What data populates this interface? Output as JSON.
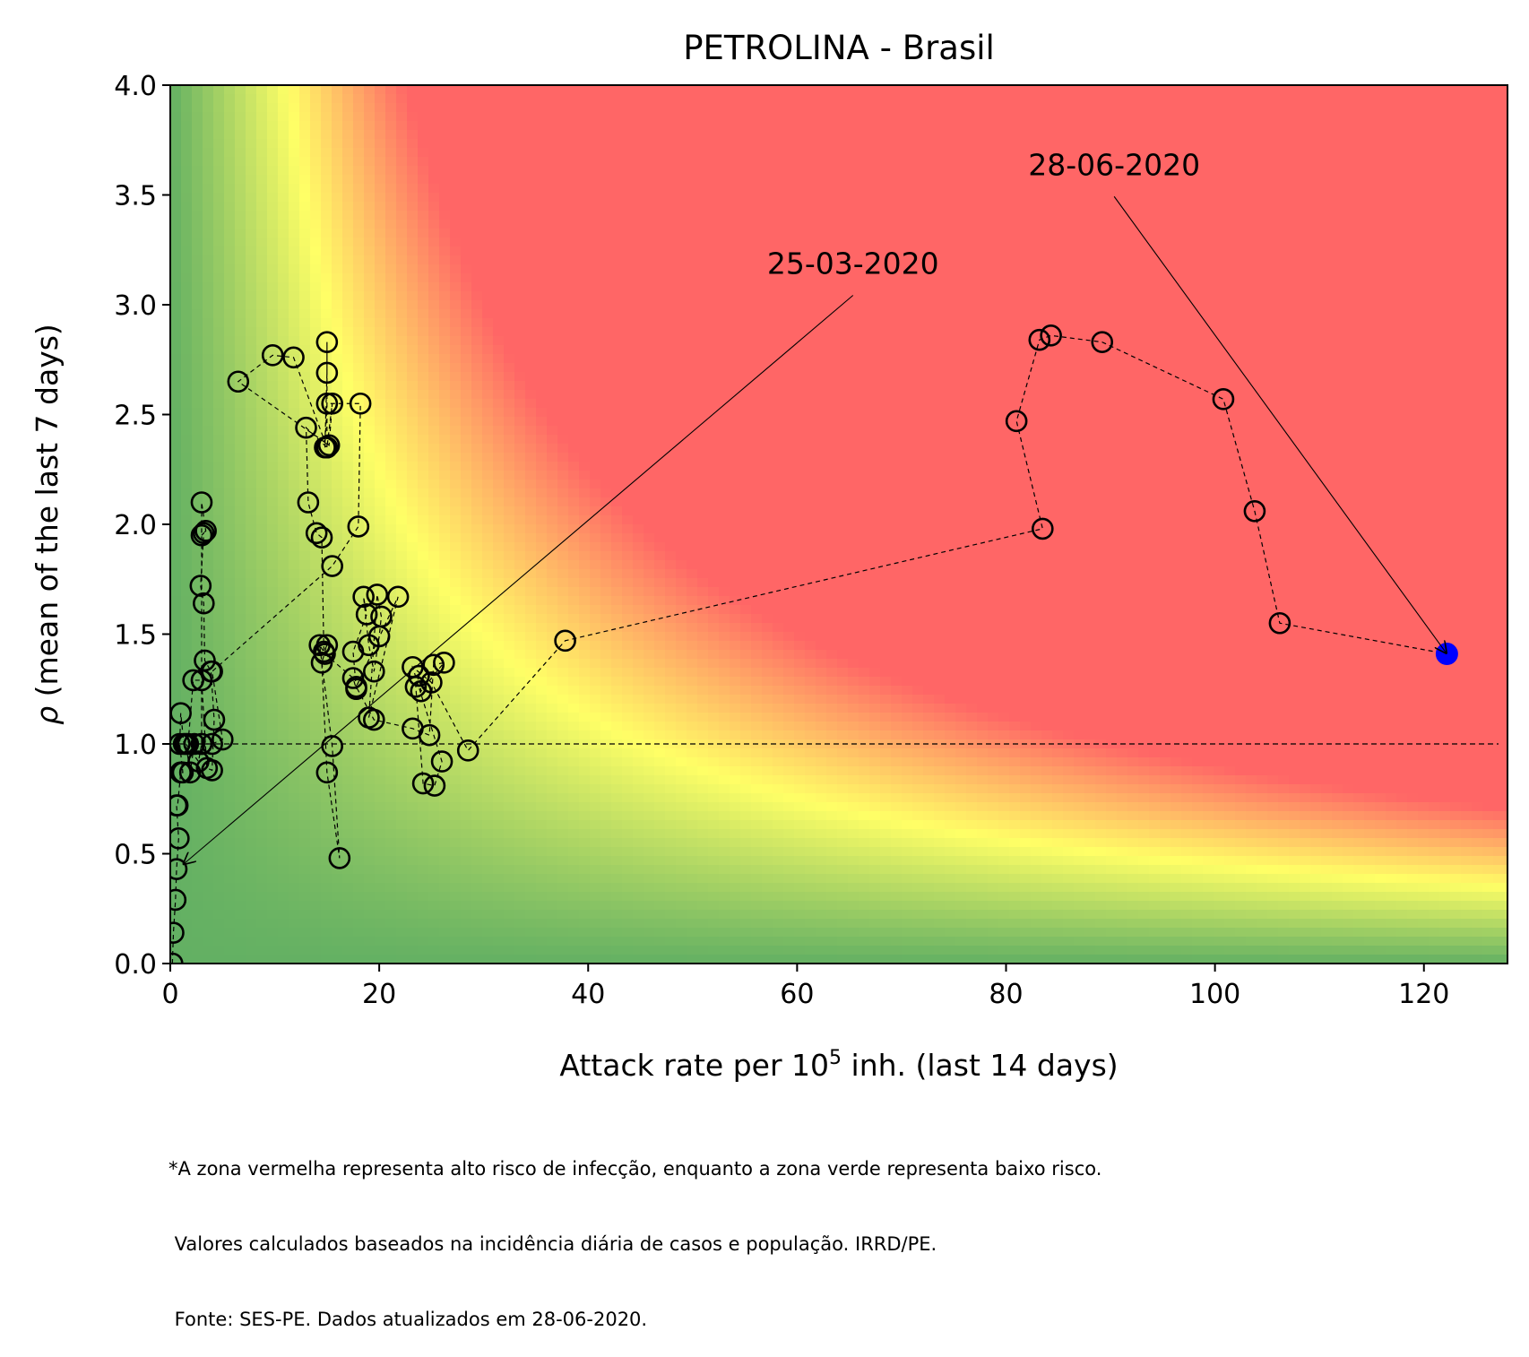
{
  "chart_data": {
    "type": "scatter",
    "title": "PETROLINA - Brasil",
    "xlabel_prefix": "Attack rate per 10",
    "xlabel_sup": "5",
    "xlabel_suffix": " inh. (last 14 days)",
    "ylabel_symbol": "ρ",
    "ylabel_text": " (mean of the last 7 days)",
    "xlim": [
      0,
      128
    ],
    "ylim": [
      0,
      4.0
    ],
    "xticks": [
      0,
      20,
      40,
      60,
      80,
      100,
      120
    ],
    "xtick_labels": [
      "0",
      "20",
      "40",
      "60",
      "80",
      "100",
      "120"
    ],
    "yticks": [
      0,
      0.5,
      1.0,
      1.5,
      2.0,
      2.5,
      3.0,
      3.5,
      4.0
    ],
    "ytick_labels": [
      "0.0",
      "0.5",
      "1.0",
      "1.5",
      "2.0",
      "2.5",
      "3.0",
      "3.5",
      "4.0"
    ],
    "reference_line_y": 1.0,
    "background": "risk heatmap: green (low) → yellow → red (high)",
    "colors": {
      "green": "#63b063",
      "yellow": "#ffff66",
      "red": "#ff6666",
      "marker": "#000000",
      "last_point": "#0000ff"
    },
    "series": [
      {
        "x": [
          0.2,
          0.3,
          0.5,
          0.6,
          0.8,
          0.6,
          0.7,
          1.0,
          1.2,
          0.9,
          1.0,
          1.3,
          1.7,
          2.2,
          3.0,
          3.5,
          4.0,
          4.2,
          3.9,
          3.3,
          3.2,
          2.9,
          3.2,
          3.0,
          3.4,
          3.0,
          3.0,
          2.7,
          1.5,
          1.9,
          2.3,
          3.0,
          4.0,
          5.0,
          4.0,
          15.5,
          18.0,
          18.2,
          15.0,
          14.8,
          15.0,
          15.0,
          15.0,
          11.8,
          9.8,
          6.5,
          15.2,
          15.5,
          15.0,
          13.0,
          13.2,
          14.0,
          14.5,
          14.7,
          15.0,
          14.5,
          15.0,
          16.2,
          15.5,
          14.3,
          14.8,
          17.5,
          17.8,
          17.5,
          18.8,
          18.5,
          19.0,
          19.5,
          20.0,
          20.2,
          19.8,
          19.0,
          21.8,
          17.8,
          19.5,
          23.2,
          24.8,
          25.2,
          26.2,
          24.0,
          23.8,
          23.5,
          24.2,
          25.3,
          26.0,
          23.2,
          25.0,
          28.5,
          37.8,
          83.5,
          81.0,
          83.2,
          84.3,
          89.2,
          100.8,
          103.8,
          106.2,
          122.2
        ],
        "y": [
          0.0,
          0.14,
          0.29,
          0.43,
          0.57,
          0.72,
          0.72,
          0.87,
          0.87,
          1.0,
          1.14,
          1.0,
          1.0,
          1.29,
          1.29,
          0.89,
          0.88,
          1.11,
          1.33,
          1.38,
          1.64,
          1.72,
          1.96,
          1.95,
          1.97,
          2.1,
          1.0,
          0.92,
          1.0,
          0.87,
          1.0,
          1.0,
          1.0,
          1.02,
          1.33,
          1.81,
          1.99,
          2.55,
          2.55,
          2.35,
          2.69,
          2.83,
          2.35,
          2.76,
          2.77,
          2.65,
          2.36,
          2.55,
          2.35,
          2.44,
          2.1,
          1.96,
          1.94,
          1.42,
          1.45,
          1.37,
          0.87,
          0.48,
          0.99,
          1.45,
          1.41,
          1.3,
          1.25,
          1.42,
          1.59,
          1.67,
          1.45,
          1.33,
          1.49,
          1.58,
          1.68,
          1.12,
          1.67,
          1.26,
          1.11,
          1.07,
          1.04,
          1.36,
          1.37,
          1.24,
          1.31,
          1.26,
          0.82,
          0.81,
          0.92,
          1.35,
          1.28,
          0.97,
          1.47,
          1.98,
          2.47,
          2.84,
          2.86,
          2.83,
          2.57,
          2.06,
          1.55,
          1.41
        ]
      }
    ],
    "annotations": [
      {
        "text": "25-03-2020",
        "point": [
          1.2,
          0.45
        ],
        "text_pos": [
          70.5,
          3.1
        ]
      },
      {
        "text": "28-06-2020",
        "point": [
          122.2,
          1.41
        ],
        "text_pos": [
          95.5,
          3.55
        ]
      }
    ],
    "footnote": [
      "*A zona vermelha representa alto risco de infecção, enquanto a zona verde representa baixo risco.",
      " Valores calculados baseados na incidência diária de casos e população. IRRD/PE.",
      " Fonte: SES-PE. Dados atualizados em 28-06-2020."
    ]
  }
}
